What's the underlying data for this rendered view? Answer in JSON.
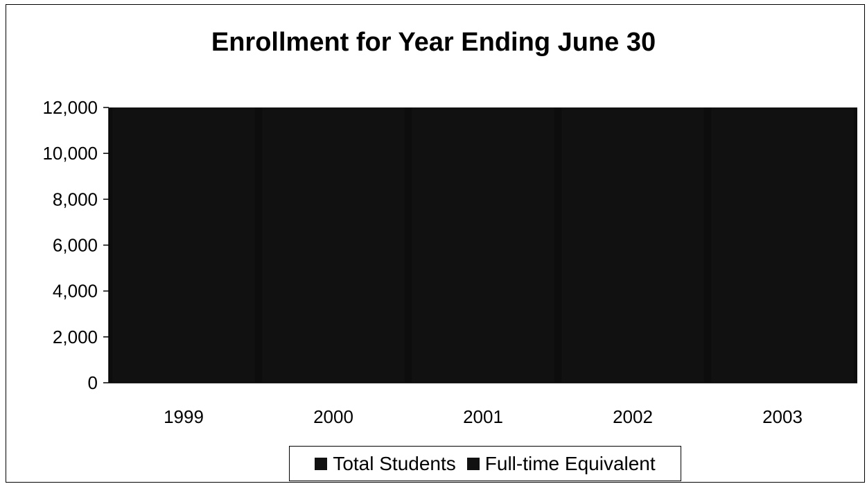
{
  "chart_data": {
    "type": "bar",
    "title": "Enrollment for Year Ending June 30",
    "categories": [
      "1999",
      "2000",
      "2001",
      "2002",
      "2003"
    ],
    "series": [
      {
        "name": "Total Students",
        "values": [
          12000,
          12000,
          12000,
          12000,
          12000
        ],
        "color": "#111111"
      },
      {
        "name": "Full-time Equivalent",
        "values": [
          12000,
          12000,
          12000,
          12000,
          12000
        ],
        "color": "#111111"
      }
    ],
    "ylim": [
      0,
      12000
    ],
    "yticks": [
      0,
      2000,
      4000,
      6000,
      8000,
      10000,
      12000
    ],
    "ytick_labels": [
      "0",
      "2,000",
      "4,000",
      "6,000",
      "8,000",
      "10,000",
      "12,000"
    ],
    "xlabel": "",
    "ylabel": "",
    "legend_position": "bottom",
    "plot_background": "#0d0d0d",
    "grid": false
  }
}
